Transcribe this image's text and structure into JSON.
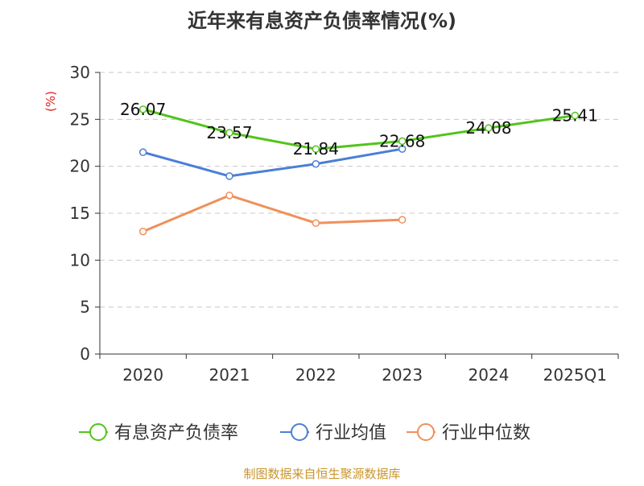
{
  "chart_data": {
    "type": "line",
    "title": "近年来有息资产负债率情况(%)",
    "ylabel": "(%)",
    "categories": [
      "2020",
      "2021",
      "2022",
      "2023",
      "2024",
      "2025Q1"
    ],
    "ylim": [
      0,
      30
    ],
    "yticks": [
      0,
      5,
      10,
      15,
      20,
      25,
      30
    ],
    "grid": true,
    "legend_position": "bottom",
    "series": [
      {
        "name": "有息资产负债率",
        "color": "#52c41a",
        "values": [
          26.07,
          23.57,
          21.84,
          22.68,
          24.08,
          25.41
        ],
        "labels": [
          "26.07",
          "23.57",
          "21.84",
          "22.68",
          "24.08",
          "25.41"
        ]
      },
      {
        "name": "行业均值",
        "color": "#4a7fd6",
        "values": [
          21.5,
          18.95,
          20.25,
          21.85,
          null,
          null
        ]
      },
      {
        "name": "行业中位数",
        "color": "#f0905a",
        "values": [
          13.05,
          16.9,
          13.95,
          14.3,
          null,
          null
        ]
      }
    ]
  },
  "footer": {
    "source": "制图数据来自恒生聚源数据库",
    "source_color": "#c8962d"
  },
  "colors": {
    "axis": "#333333",
    "grid": "#c8c8c8",
    "ylabel": "#e02020",
    "text": "#333333"
  }
}
